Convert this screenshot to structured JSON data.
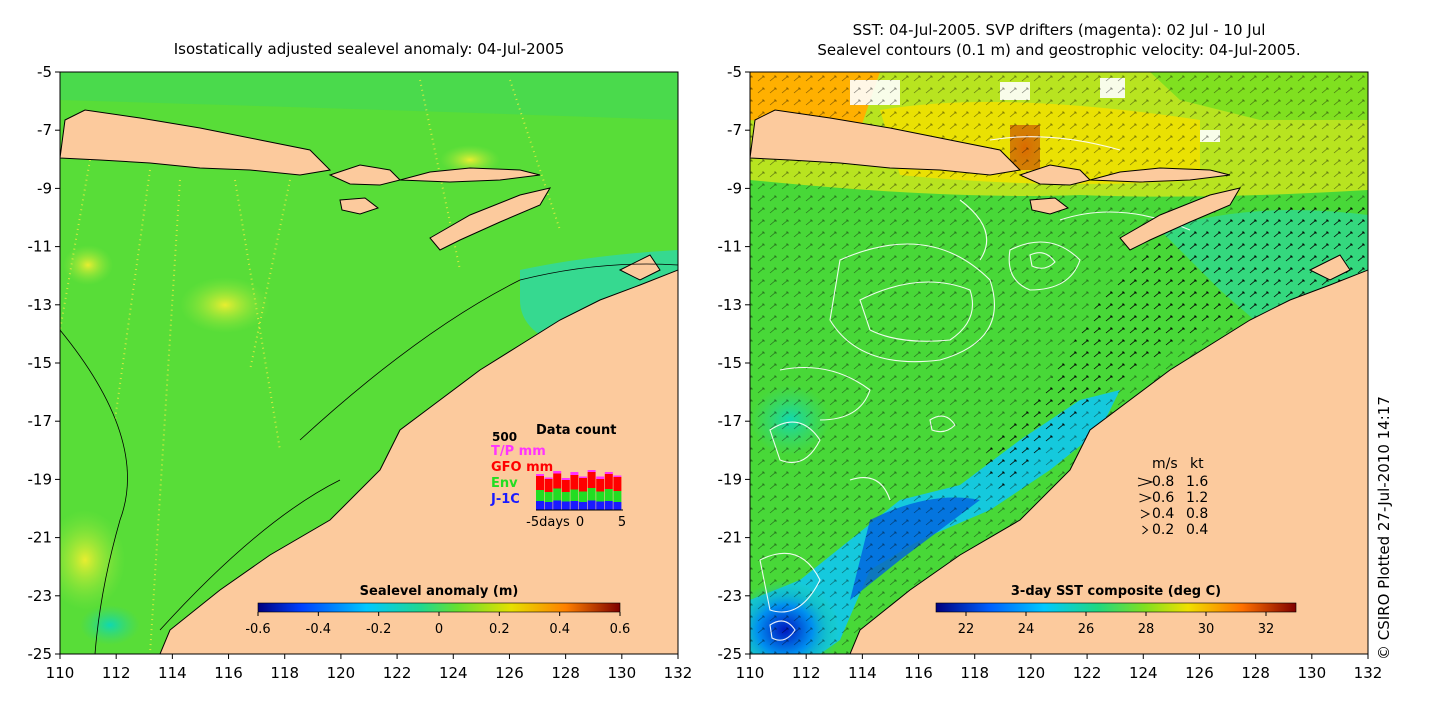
{
  "left_panel": {
    "title": "Isostatically adjusted sealevel anomaly: 04-Jul-2005",
    "x_ticks": [
      "110",
      "112",
      "114",
      "116",
      "118",
      "120",
      "122",
      "124",
      "126",
      "128",
      "130",
      "132"
    ],
    "y_ticks": [
      "-5",
      "-7",
      "-9",
      "-11",
      "-13",
      "-15",
      "-17",
      "-19",
      "-21",
      "-23",
      "-25"
    ],
    "colorbar": {
      "label": "Sealevel anomaly (m)",
      "ticks": [
        "-0.6",
        "-0.4",
        "-0.2",
        "0",
        "0.2",
        "0.4",
        "0.6"
      ]
    },
    "data_count": {
      "title": "Data count",
      "max_label": "500",
      "legend": [
        {
          "label": "T/P mm",
          "color": "#ff33ff"
        },
        {
          "label": "GFO mm",
          "color": "#ff0000"
        },
        {
          "label": "Env",
          "color": "#22dd22"
        },
        {
          "label": "J-1C",
          "color": "#1a1aff"
        }
      ],
      "axis_ticks": [
        "-5days",
        "0",
        "5"
      ],
      "days": [
        -5,
        -4,
        -3,
        -2,
        -1,
        0,
        1,
        2,
        3,
        4
      ],
      "counts": {
        "jason": [
          90,
          80,
          95,
          85,
          90,
          80,
          95,
          85,
          90,
          80
        ],
        "envisat": [
          110,
          100,
          120,
          95,
          115,
          105,
          125,
          100,
          120,
          110
        ],
        "gfo": [
          140,
          130,
          150,
          120,
          145,
          135,
          160,
          125,
          150,
          140
        ],
        "tp": [
          20,
          15,
          25,
          20,
          30,
          15,
          20,
          25,
          20,
          15
        ]
      }
    }
  },
  "right_panel": {
    "title_line1": "SST: 04-Jul-2005. SVP drifters (magenta): 02 Jul - 10 Jul",
    "title_line2": "Sealevel contours (0.1 m) and geostrophic velocity: 04-Jul-2005.",
    "x_ticks": [
      "110",
      "112",
      "114",
      "116",
      "118",
      "120",
      "122",
      "124",
      "126",
      "128",
      "130",
      "132"
    ],
    "y_ticks": [
      "-5",
      "-7",
      "-9",
      "-11",
      "-13",
      "-15",
      "-17",
      "-19",
      "-21",
      "-23",
      "-25"
    ],
    "colorbar": {
      "label": "3-day SST composite (deg C)",
      "ticks": [
        "22",
        "24",
        "26",
        "28",
        "30",
        "32"
      ]
    },
    "velocity_legend": {
      "header_ms": "m/s",
      "header_kt": "kt",
      "rows": [
        {
          "ms": "0.8",
          "kt": "1.6"
        },
        {
          "ms": "0.6",
          "kt": "1.2"
        },
        {
          "ms": "0.4",
          "kt": "0.8"
        },
        {
          "ms": "0.2",
          "kt": "0.4"
        }
      ]
    },
    "credit": "© CSIRO Plotted 27-Jul-2010 14:17"
  },
  "colors": {
    "land": "#fcca9d",
    "ocean_main": "#44dd33",
    "coast": "#000000"
  }
}
